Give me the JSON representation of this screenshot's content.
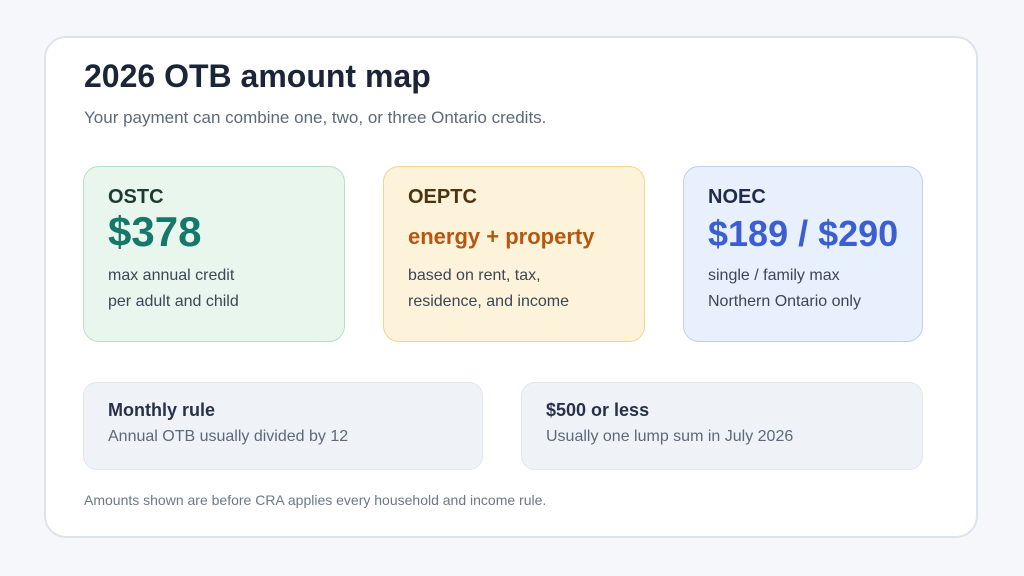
{
  "header": {
    "title": "2026 OTB amount map",
    "subtitle": "Your payment can combine one, two, or three Ontario credits."
  },
  "credits": [
    {
      "name": "OSTC",
      "value": "$378",
      "desc_lines": [
        "max annual credit",
        "per adult and child"
      ],
      "accent_color": "#16776b"
    },
    {
      "name": "OEPTC",
      "value": "energy + property",
      "desc_lines": [
        "based on rent, tax,",
        "residence, and income"
      ],
      "accent_color": "#b4570f"
    },
    {
      "name": "NOEC",
      "value": "$189 / $290",
      "desc_lines": [
        "single / family max",
        "Northern Ontario only"
      ],
      "accent_color": "#3b5fd1"
    }
  ],
  "rules": [
    {
      "title": "Monthly rule",
      "desc": "Annual OTB usually divided by 12"
    },
    {
      "title": "$500 or less",
      "desc": "Usually one lump sum in July 2026"
    }
  ],
  "footnote": "Amounts shown are before CRA applies every household and income rule."
}
